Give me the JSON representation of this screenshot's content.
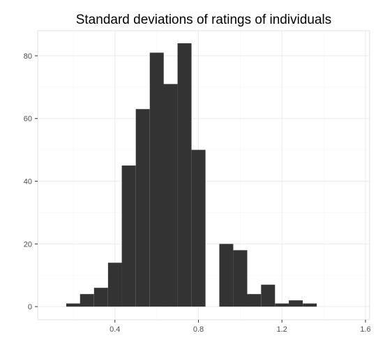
{
  "chart_data": {
    "type": "bar",
    "title": "Standard deviations of ratings of individuals",
    "xlabel": "",
    "ylabel": "",
    "bin_width": 0.0667,
    "bin_starts": [
      0.167,
      0.233,
      0.3,
      0.367,
      0.433,
      0.5,
      0.567,
      0.633,
      0.7,
      0.767,
      0.833,
      0.9,
      0.967,
      1.033,
      1.1,
      1.167,
      1.233,
      1.3,
      1.367,
      1.433
    ],
    "values": [
      1,
      4,
      6,
      14,
      45,
      63,
      81,
      71,
      84,
      50,
      0,
      20,
      18,
      4,
      7,
      1,
      2,
      1,
      0,
      0
    ],
    "xlim": [
      0.03,
      1.62
    ],
    "ylim": [
      -4.2,
      88
    ],
    "x_ticks": [
      0.4,
      0.8,
      1.2,
      1.6
    ],
    "x_tick_labels": [
      "0.4",
      "0.8",
      "1.2",
      "1.6"
    ],
    "y_ticks": [
      0,
      20,
      40,
      60,
      80
    ],
    "y_tick_labels": [
      "0",
      "20",
      "40",
      "60",
      "80"
    ],
    "grid": true,
    "colors": {
      "bar": "#333333",
      "grid": "#ebebeb",
      "panel_border": "#e0e0e0",
      "tick_text": "#4d4d4d"
    }
  }
}
